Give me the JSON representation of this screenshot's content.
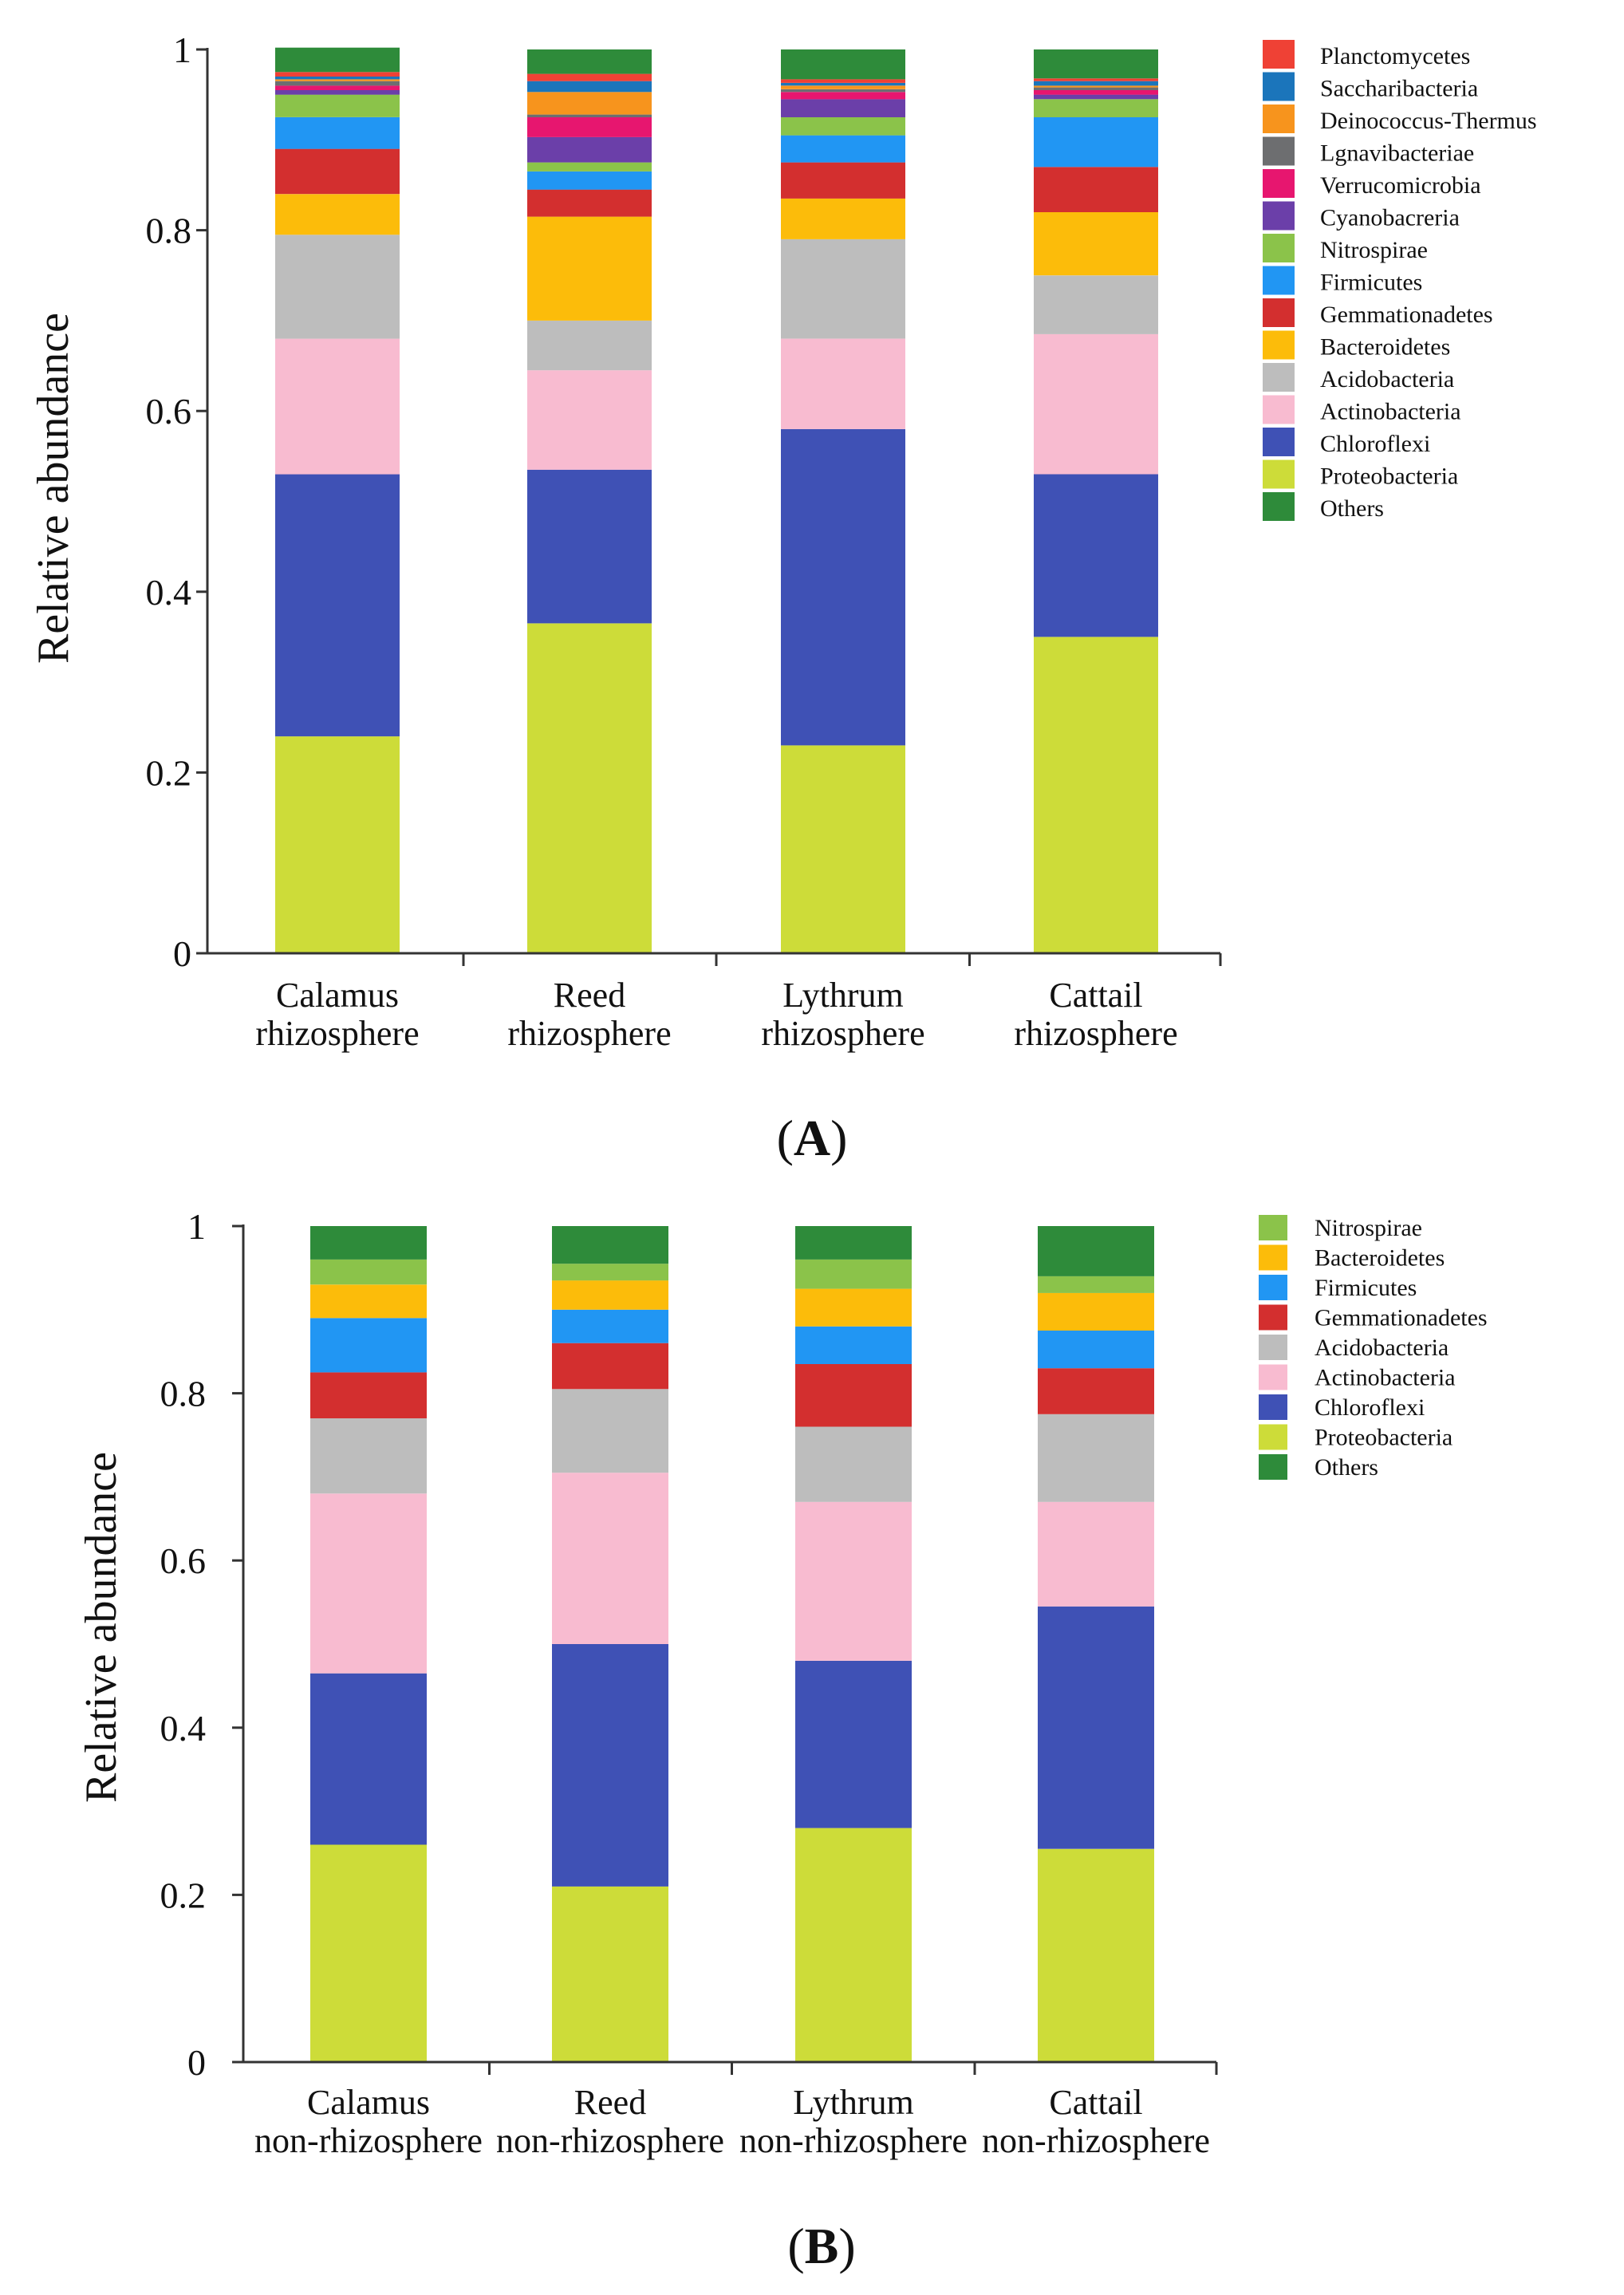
{
  "colors": {
    "Planctomycetes": "#ef4135",
    "Saccharibacteria": "#1b75bb",
    "Deinococcus-Thermus": "#f7941d",
    "Lgnavibacteriae": "#6d6e70",
    "Verrucomicrobia": "#e7166f",
    "Cyanobacreria": "#6b3fa9",
    "Nitrospirae": "#8bc34a",
    "Firmicutes": "#2196f3",
    "Gemmationadetes": "#d32f2f",
    "Bacteroidetes": "#fcbc0a",
    "Acidobacteria": "#bdbdbd",
    "Actinobacteria": "#f8bbd0",
    "Chloroflexi": "#3f51b5",
    "Proteobacteria": "#cddc39",
    "Others": "#2e8b3a"
  },
  "chart_data": [
    {
      "type": "bar",
      "stacked": true,
      "panel_label": "A",
      "ylabel": "Relative abundance",
      "ylim": [
        0,
        1
      ],
      "yticks": [
        "0",
        "0.2",
        "0.4",
        "0.6",
        "0.8",
        "1"
      ],
      "categories": [
        [
          "Calamus",
          "rhizosphere"
        ],
        [
          "Reed",
          "rhizosphere"
        ],
        [
          "Lythrum",
          "rhizosphere"
        ],
        [
          "Cattail",
          "rhizosphere"
        ]
      ],
      "legend": [
        "Planctomycetes",
        "Saccharibacteria",
        "Deinococcus-Thermus",
        "Lgnavibacteriae",
        "Verrucomicrobia",
        "Cyanobacreria",
        "Nitrospirae",
        "Firmicutes",
        "Gemmationadetes",
        "Bacteroidetes",
        "Acidobacteria",
        "Actinobacteria",
        "Chloroflexi",
        "Proteobacteria",
        "Others"
      ],
      "series": [
        {
          "name": "Proteobacteria",
          "values": [
            0.24,
            0.365,
            0.23,
            0.35
          ]
        },
        {
          "name": "Chloroflexi",
          "values": [
            0.29,
            0.17,
            0.35,
            0.18
          ]
        },
        {
          "name": "Actinobacteria",
          "values": [
            0.15,
            0.11,
            0.1,
            0.155
          ]
        },
        {
          "name": "Acidobacteria",
          "values": [
            0.115,
            0.055,
            0.11,
            0.065
          ]
        },
        {
          "name": "Bacteroidetes",
          "values": [
            0.045,
            0.115,
            0.045,
            0.07
          ]
        },
        {
          "name": "Gemmationadetes",
          "values": [
            0.05,
            0.03,
            0.04,
            0.05
          ]
        },
        {
          "name": "Firmicutes",
          "values": [
            0.035,
            0.02,
            0.03,
            0.055
          ]
        },
        {
          "name": "Nitrospirae",
          "values": [
            0.025,
            0.01,
            0.02,
            0.02
          ]
        },
        {
          "name": "Cyanobacreria",
          "values": [
            0.005,
            0.028,
            0.02,
            0.005
          ]
        },
        {
          "name": "Verrucomicrobia",
          "values": [
            0.005,
            0.022,
            0.008,
            0.005
          ]
        },
        {
          "name": "Lgnavibacteriae",
          "values": [
            0.005,
            0.003,
            0.003,
            0.003
          ]
        },
        {
          "name": "Deinococcus-Thermus",
          "values": [
            0.002,
            0.025,
            0.004,
            0.002
          ]
        },
        {
          "name": "Saccharibacteria",
          "values": [
            0.003,
            0.012,
            0.003,
            0.005
          ]
        },
        {
          "name": "Planctomycetes",
          "values": [
            0.005,
            0.008,
            0.004,
            0.003
          ]
        },
        {
          "name": "Others",
          "values": [
            0.027,
            0.027,
            0.033,
            0.032
          ]
        }
      ]
    },
    {
      "type": "bar",
      "stacked": true,
      "panel_label": "B",
      "ylabel": "Relative abundance",
      "ylim": [
        0,
        1
      ],
      "yticks": [
        "0",
        "0.2",
        "0.4",
        "0.6",
        "0.8",
        "1"
      ],
      "categories": [
        [
          "Calamus",
          "non-rhizosphere"
        ],
        [
          "Reed",
          "non-rhizosphere"
        ],
        [
          "Lythrum",
          "non-rhizosphere"
        ],
        [
          "Cattail",
          "non-rhizosphere"
        ]
      ],
      "legend": [
        "Nitrospirae",
        "Bacteroidetes",
        "Firmicutes",
        "Gemmationadetes",
        "Acidobacteria",
        "Actinobacteria",
        "Chloroflexi",
        "Proteobacteria",
        "Others"
      ],
      "series": [
        {
          "name": "Proteobacteria",
          "values": [
            0.26,
            0.21,
            0.28,
            0.255
          ]
        },
        {
          "name": "Chloroflexi",
          "values": [
            0.205,
            0.29,
            0.2,
            0.29
          ]
        },
        {
          "name": "Actinobacteria",
          "values": [
            0.215,
            0.205,
            0.19,
            0.125
          ]
        },
        {
          "name": "Acidobacteria",
          "values": [
            0.09,
            0.1,
            0.09,
            0.105
          ]
        },
        {
          "name": "Gemmationadetes",
          "values": [
            0.055,
            0.055,
            0.075,
            0.055
          ]
        },
        {
          "name": "Firmicutes",
          "values": [
            0.065,
            0.04,
            0.045,
            0.045
          ]
        },
        {
          "name": "Bacteroidetes",
          "values": [
            0.04,
            0.035,
            0.045,
            0.045
          ]
        },
        {
          "name": "Nitrospirae",
          "values": [
            0.03,
            0.02,
            0.035,
            0.02
          ]
        },
        {
          "name": "Others",
          "values": [
            0.04,
            0.045,
            0.04,
            0.06
          ]
        }
      ]
    }
  ]
}
